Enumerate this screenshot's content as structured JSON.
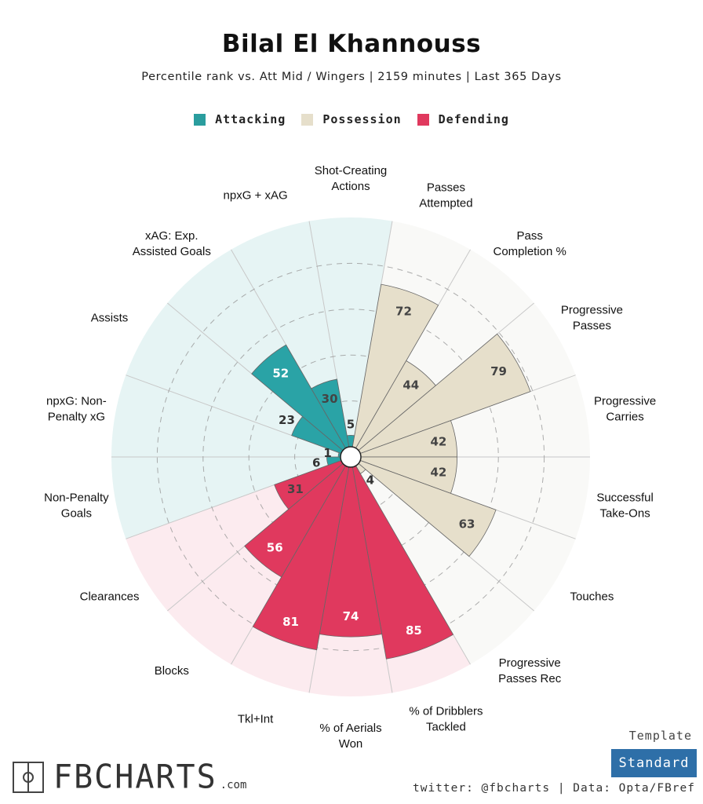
{
  "header": {
    "title": "Bilal El Khannouss",
    "subtitle": "Percentile rank vs. Att Mid / Wingers | 2159 minutes | Last 365 Days"
  },
  "legend": [
    {
      "label": "Attacking",
      "color": "#2a9d9e"
    },
    {
      "label": "Possession",
      "color": "#e6dfcb"
    },
    {
      "label": "Defending",
      "color": "#e0395e"
    }
  ],
  "colors": {
    "Attacking": {
      "fill": "#2aa3a6",
      "bg": "#e6f4f4"
    },
    "Possession": {
      "fill": "#e6dfcb",
      "bg": "#f9f9f7"
    },
    "Defending": {
      "fill": "#e0395e",
      "bg": "#fcebef"
    },
    "grid": "#999999",
    "spoke": "#c8c8c8"
  },
  "chart_data": {
    "type": "polar-bar",
    "scale_max": 100,
    "categories": [
      {
        "label": "Shot-Creating\nActions",
        "value": 5,
        "group": "Attacking"
      },
      {
        "label": "Passes\nAttempted",
        "value": 72,
        "group": "Possession"
      },
      {
        "label": "Pass\nCompletion %",
        "value": 44,
        "group": "Possession"
      },
      {
        "label": "Progressive\nPasses",
        "value": 79,
        "group": "Possession"
      },
      {
        "label": "Progressive\nCarries",
        "value": 42,
        "group": "Possession"
      },
      {
        "label": "Successful\nTake-Ons",
        "value": 42,
        "group": "Possession"
      },
      {
        "label": "Touches",
        "value": 63,
        "group": "Possession"
      },
      {
        "label": "Progressive\nPasses Rec",
        "value": 4,
        "group": "Possession"
      },
      {
        "label": "% of Dribblers\nTackled",
        "value": 85,
        "group": "Defending"
      },
      {
        "label": "% of Aerials\nWon",
        "value": 74,
        "group": "Defending"
      },
      {
        "label": "Tkl+Int",
        "value": 81,
        "group": "Defending"
      },
      {
        "label": "Blocks",
        "value": 56,
        "group": "Defending"
      },
      {
        "label": "Clearances",
        "value": 31,
        "group": "Defending"
      },
      {
        "label": "Non-Penalty\nGoals",
        "value": 6,
        "group": "Attacking"
      },
      {
        "label": "npxG: Non-\nPenalty xG",
        "value": 1,
        "group": "Attacking"
      },
      {
        "label": "Assists",
        "value": 23,
        "group": "Attacking"
      },
      {
        "label": "xAG: Exp.\nAssisted Goals",
        "value": 52,
        "group": "Attacking"
      },
      {
        "label": "npxG + xAG",
        "value": 30,
        "group": "Attacking"
      }
    ]
  },
  "footer": {
    "logo_text": "FBCHARTS",
    "logo_sub": ".com",
    "template_label": "Template",
    "template_value": "Standard",
    "credit": "twitter: @fbcharts | Data: Opta/FBref"
  }
}
